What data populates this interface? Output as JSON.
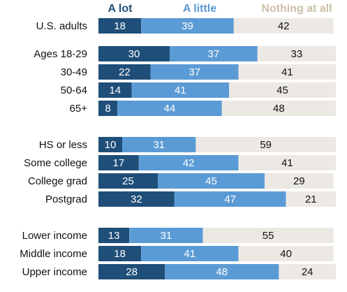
{
  "chart_data": {
    "type": "bar",
    "orientation": "horizontal",
    "stacked": true,
    "categories": [
      "U.S. adults",
      "Ages 18-29",
      "30-49",
      "50-64",
      "65+",
      "HS or less",
      "Some college",
      "College grad",
      "Postgrad",
      "Lower income",
      "Middle income",
      "Upper income"
    ],
    "series": [
      {
        "name": "A lot",
        "color": "#1f4e79",
        "values": [
          18,
          30,
          22,
          14,
          8,
          10,
          17,
          25,
          32,
          13,
          18,
          28
        ]
      },
      {
        "name": "A little",
        "color": "#5b9bd5",
        "values": [
          39,
          37,
          37,
          41,
          44,
          31,
          42,
          45,
          47,
          31,
          41,
          48
        ]
      },
      {
        "name": "Nothing at all",
        "color": "#ece9e4",
        "values": [
          42,
          33,
          41,
          45,
          48,
          59,
          41,
          29,
          21,
          55,
          40,
          24
        ]
      }
    ],
    "legend_colors": {
      "A lot": "#1f4e79",
      "A little": "#5b9bd5",
      "Nothing at all": "#c9bfa6"
    },
    "title": "",
    "xlabel": "",
    "ylabel": "",
    "xlim": [
      0,
      100
    ],
    "grid": false,
    "legend_position": "top"
  }
}
